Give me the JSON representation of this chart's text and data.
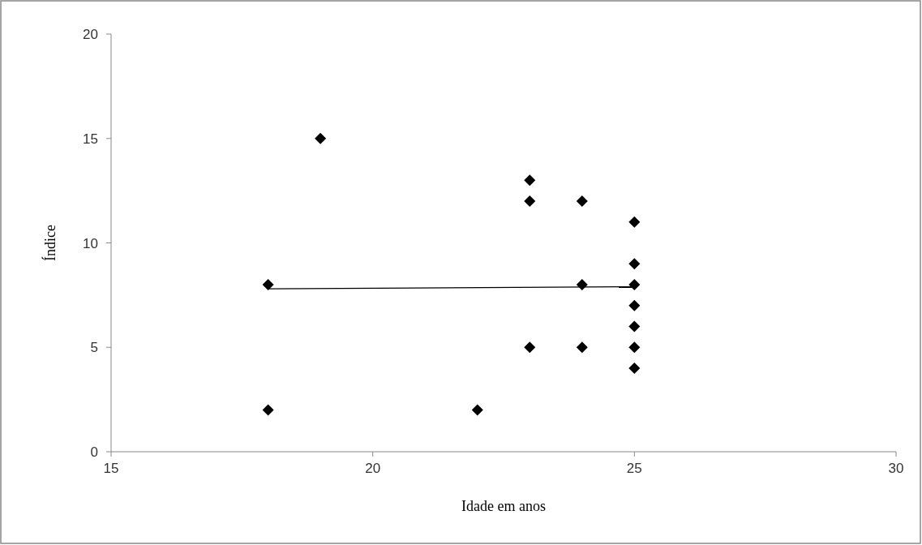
{
  "chart_data": {
    "type": "scatter",
    "xlabel": "Idade em anos",
    "ylabel": "Índice",
    "xlim": [
      15,
      30
    ],
    "xticks": [
      15,
      20,
      25,
      30
    ],
    "ylim": [
      0,
      20
    ],
    "yticks": [
      0,
      5,
      10,
      15,
      20
    ],
    "grid": false,
    "series": [
      {
        "color": "#000000",
        "marker": "diamond",
        "x": [
          18,
          18,
          19,
          22,
          23,
          23,
          23,
          24,
          24,
          24,
          25,
          25,
          25,
          25,
          25,
          25,
          25
        ],
        "values": [
          8,
          2,
          15,
          2,
          13,
          12,
          5,
          12,
          8,
          5,
          11,
          9,
          8,
          7,
          6,
          5,
          4
        ]
      },
      {
        "type": "line",
        "color": "#000000",
        "marker": "none",
        "line_style": "solid",
        "x": [
          18,
          25
        ],
        "values": [
          7.8,
          7.9
        ]
      }
    ]
  }
}
